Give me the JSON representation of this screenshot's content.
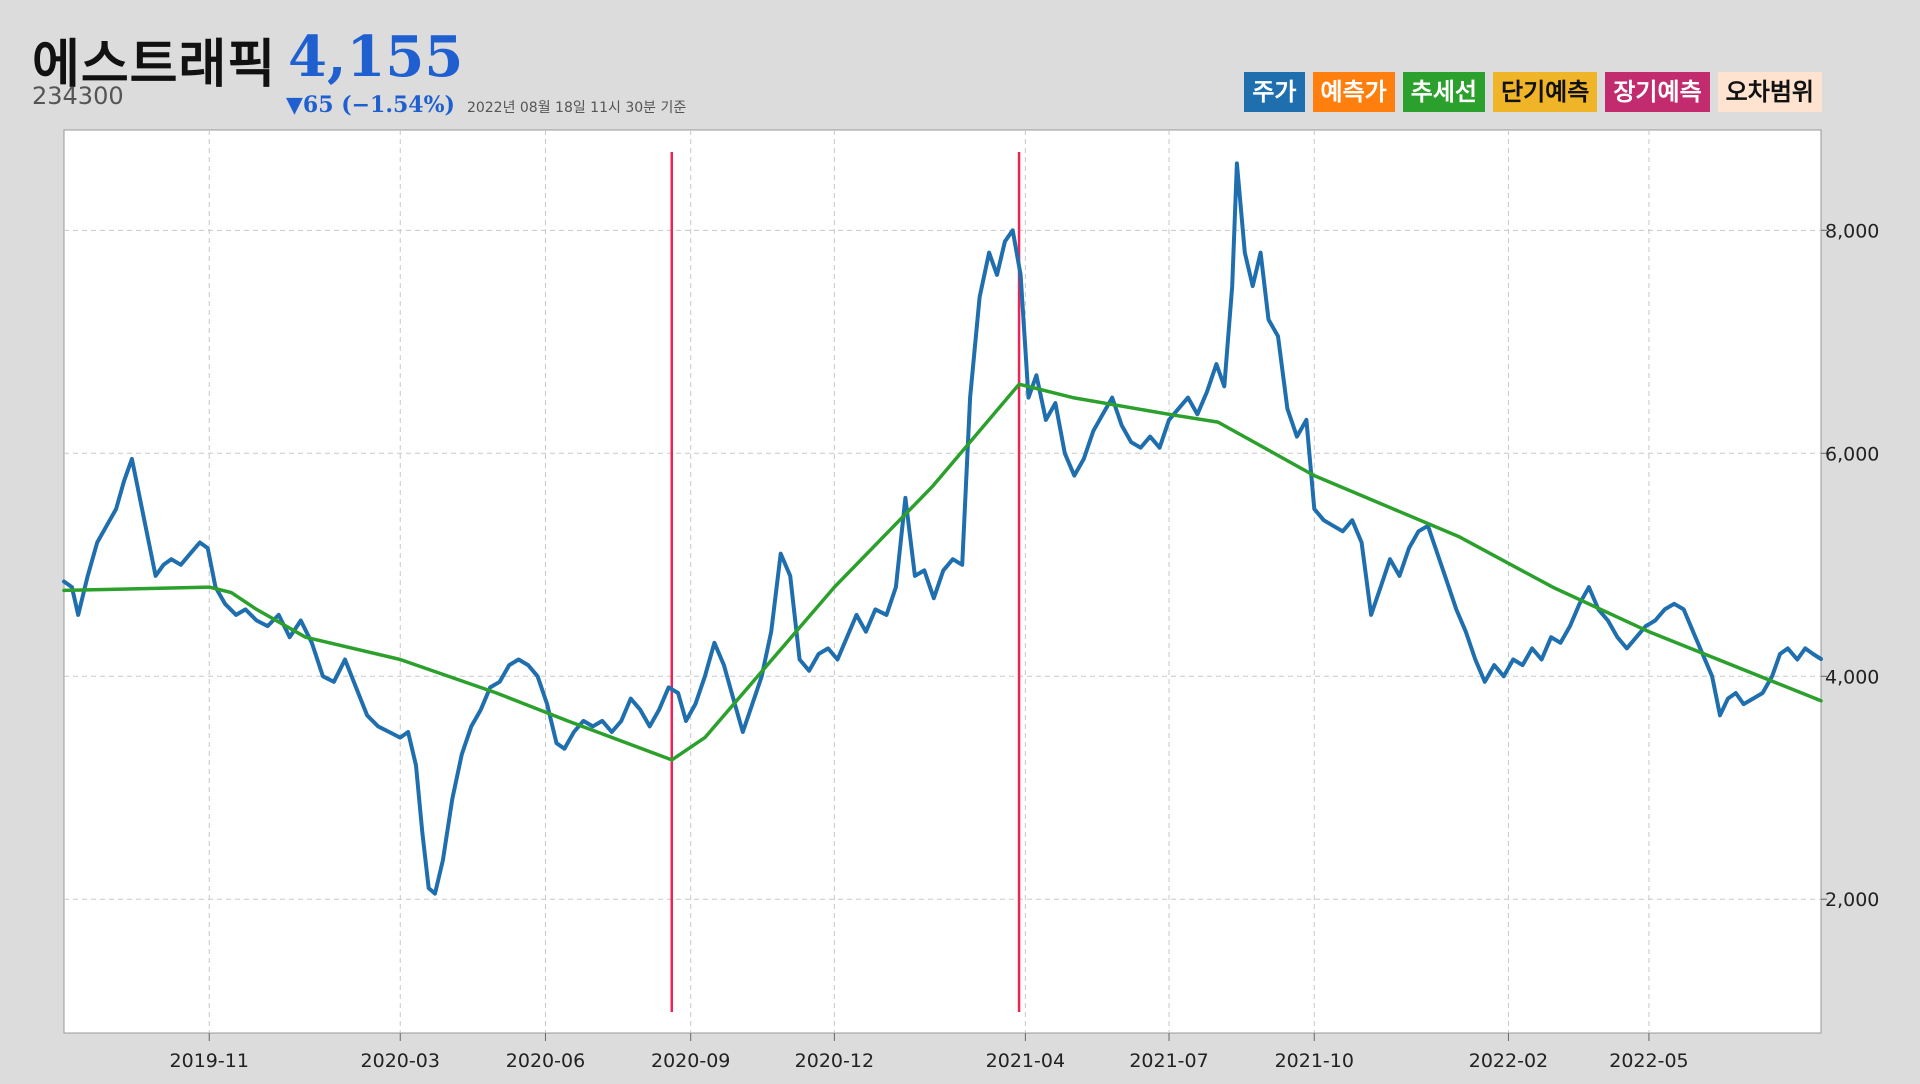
{
  "header": {
    "name": "에스트래픽",
    "code": "234300",
    "price": "4,155",
    "change": "▼65 (−1.54%)",
    "timestamp": "2022년 08월 18일 11시 30분 기준"
  },
  "legend": [
    {
      "label": "주가",
      "bg": "#1f6faf",
      "fg": "#ffffff"
    },
    {
      "label": "예측가",
      "bg": "#ff7f0e",
      "fg": "#ffffff"
    },
    {
      "label": "추세선",
      "bg": "#2ca02c",
      "fg": "#ffffff"
    },
    {
      "label": "단기예측",
      "bg": "#f0b429",
      "fg": "#111111"
    },
    {
      "label": "장기예측",
      "bg": "#c22c6e",
      "fg": "#ffffff"
    },
    {
      "label": "오차범위",
      "bg": "#fde3d0",
      "fg": "#111111"
    }
  ],
  "colors": {
    "price": "#1f6faf",
    "trend": "#2ca02c",
    "marker": "#ee2255",
    "grid": "#c8c8c8"
  },
  "chart_data": {
    "type": "line",
    "xlabels": [
      "2019-11",
      "2020-03",
      "2020-06",
      "2020-09",
      "2020-12",
      "2021-04",
      "2021-07",
      "2021-10",
      "2022-02",
      "2022-05"
    ],
    "xlabel_dates": [
      "2019-11-01",
      "2020-03-01",
      "2020-06-01",
      "2020-09-01",
      "2020-12-01",
      "2021-04-01",
      "2021-07-01",
      "2021-10-01",
      "2022-02-01",
      "2022-05-01"
    ],
    "x_range": [
      "2019-08-01",
      "2022-08-18"
    ],
    "yticks": [
      2000,
      4000,
      6000,
      8000
    ],
    "ytick_labels": [
      "2,000",
      "4,000",
      "6,000",
      "8,000"
    ],
    "ylim": [
      800,
      8900
    ],
    "y_axis_side": "right",
    "grid": true,
    "vertical_markers": [
      "2020-08-20",
      "2021-03-28"
    ],
    "series": [
      {
        "key": "price",
        "points": [
          [
            "2019-08-01",
            4850
          ],
          [
            "2019-08-06",
            4800
          ],
          [
            "2019-08-10",
            4550
          ],
          [
            "2019-08-16",
            4900
          ],
          [
            "2019-08-22",
            5200
          ],
          [
            "2019-08-28",
            5350
          ],
          [
            "2019-09-03",
            5500
          ],
          [
            "2019-09-08",
            5750
          ],
          [
            "2019-09-13",
            5950
          ],
          [
            "2019-09-18",
            5600
          ],
          [
            "2019-09-23",
            5250
          ],
          [
            "2019-09-28",
            4900
          ],
          [
            "2019-10-03",
            5000
          ],
          [
            "2019-10-08",
            5050
          ],
          [
            "2019-10-14",
            5000
          ],
          [
            "2019-10-20",
            5100
          ],
          [
            "2019-10-26",
            5200
          ],
          [
            "2019-10-31",
            5150
          ],
          [
            "2019-11-05",
            4800
          ],
          [
            "2019-11-11",
            4650
          ],
          [
            "2019-11-18",
            4550
          ],
          [
            "2019-11-24",
            4600
          ],
          [
            "2019-12-01",
            4500
          ],
          [
            "2019-12-08",
            4450
          ],
          [
            "2019-12-15",
            4550
          ],
          [
            "2019-12-22",
            4350
          ],
          [
            "2019-12-29",
            4500
          ],
          [
            "2020-01-05",
            4300
          ],
          [
            "2020-01-12",
            4000
          ],
          [
            "2020-01-19",
            3950
          ],
          [
            "2020-01-26",
            4150
          ],
          [
            "2020-02-02",
            3900
          ],
          [
            "2020-02-09",
            3650
          ],
          [
            "2020-02-16",
            3550
          ],
          [
            "2020-02-23",
            3500
          ],
          [
            "2020-03-01",
            3450
          ],
          [
            "2020-03-06",
            3500
          ],
          [
            "2020-03-11",
            3200
          ],
          [
            "2020-03-15",
            2600
          ],
          [
            "2020-03-19",
            2100
          ],
          [
            "2020-03-23",
            2050
          ],
          [
            "2020-03-28",
            2350
          ],
          [
            "2020-04-03",
            2900
          ],
          [
            "2020-04-09",
            3300
          ],
          [
            "2020-04-15",
            3550
          ],
          [
            "2020-04-21",
            3700
          ],
          [
            "2020-04-27",
            3900
          ],
          [
            "2020-05-03",
            3950
          ],
          [
            "2020-05-09",
            4100
          ],
          [
            "2020-05-15",
            4150
          ],
          [
            "2020-05-21",
            4100
          ],
          [
            "2020-05-27",
            4000
          ],
          [
            "2020-06-02",
            3750
          ],
          [
            "2020-06-08",
            3400
          ],
          [
            "2020-06-13",
            3350
          ],
          [
            "2020-06-19",
            3500
          ],
          [
            "2020-06-25",
            3600
          ],
          [
            "2020-07-01",
            3550
          ],
          [
            "2020-07-07",
            3600
          ],
          [
            "2020-07-13",
            3500
          ],
          [
            "2020-07-19",
            3600
          ],
          [
            "2020-07-25",
            3800
          ],
          [
            "2020-07-31",
            3700
          ],
          [
            "2020-08-06",
            3550
          ],
          [
            "2020-08-12",
            3700
          ],
          [
            "2020-08-18",
            3900
          ],
          [
            "2020-08-24",
            3850
          ],
          [
            "2020-08-29",
            3600
          ],
          [
            "2020-09-04",
            3750
          ],
          [
            "2020-09-10",
            4000
          ],
          [
            "2020-09-16",
            4300
          ],
          [
            "2020-09-22",
            4100
          ],
          [
            "2020-09-28",
            3800
          ],
          [
            "2020-10-04",
            3500
          ],
          [
            "2020-10-10",
            3750
          ],
          [
            "2020-10-16",
            4000
          ],
          [
            "2020-10-22",
            4400
          ],
          [
            "2020-10-28",
            5100
          ],
          [
            "2020-11-03",
            4900
          ],
          [
            "2020-11-09",
            4150
          ],
          [
            "2020-11-15",
            4050
          ],
          [
            "2020-11-21",
            4200
          ],
          [
            "2020-11-27",
            4250
          ],
          [
            "2020-12-03",
            4150
          ],
          [
            "2020-12-09",
            4350
          ],
          [
            "2020-12-15",
            4550
          ],
          [
            "2020-12-21",
            4400
          ],
          [
            "2020-12-27",
            4600
          ],
          [
            "2021-01-03",
            4550
          ],
          [
            "2021-01-09",
            4800
          ],
          [
            "2021-01-15",
            5600
          ],
          [
            "2021-01-21",
            4900
          ],
          [
            "2021-01-27",
            4950
          ],
          [
            "2021-02-02",
            4700
          ],
          [
            "2021-02-08",
            4950
          ],
          [
            "2021-02-14",
            5050
          ],
          [
            "2021-02-20",
            5000
          ],
          [
            "2021-02-25",
            6500
          ],
          [
            "2021-03-03",
            7400
          ],
          [
            "2021-03-09",
            7800
          ],
          [
            "2021-03-14",
            7600
          ],
          [
            "2021-03-19",
            7900
          ],
          [
            "2021-03-24",
            8000
          ],
          [
            "2021-03-29",
            7600
          ],
          [
            "2021-04-03",
            6500
          ],
          [
            "2021-04-08",
            6700
          ],
          [
            "2021-04-14",
            6300
          ],
          [
            "2021-04-20",
            6450
          ],
          [
            "2021-04-26",
            6000
          ],
          [
            "2021-05-02",
            5800
          ],
          [
            "2021-05-08",
            5950
          ],
          [
            "2021-05-14",
            6200
          ],
          [
            "2021-05-20",
            6350
          ],
          [
            "2021-05-26",
            6500
          ],
          [
            "2021-06-01",
            6250
          ],
          [
            "2021-06-07",
            6100
          ],
          [
            "2021-06-13",
            6050
          ],
          [
            "2021-06-19",
            6150
          ],
          [
            "2021-06-25",
            6050
          ],
          [
            "2021-07-01",
            6300
          ],
          [
            "2021-07-07",
            6400
          ],
          [
            "2021-07-13",
            6500
          ],
          [
            "2021-07-19",
            6350
          ],
          [
            "2021-07-25",
            6550
          ],
          [
            "2021-07-31",
            6800
          ],
          [
            "2021-08-05",
            6600
          ],
          [
            "2021-08-10",
            7500
          ],
          [
            "2021-08-13",
            8600
          ],
          [
            "2021-08-18",
            7800
          ],
          [
            "2021-08-23",
            7500
          ],
          [
            "2021-08-28",
            7800
          ],
          [
            "2021-09-02",
            7200
          ],
          [
            "2021-09-08",
            7050
          ],
          [
            "2021-09-14",
            6400
          ],
          [
            "2021-09-20",
            6150
          ],
          [
            "2021-09-26",
            6300
          ],
          [
            "2021-10-01",
            5500
          ],
          [
            "2021-10-07",
            5400
          ],
          [
            "2021-10-13",
            5350
          ],
          [
            "2021-10-19",
            5300
          ],
          [
            "2021-10-25",
            5400
          ],
          [
            "2021-10-31",
            5200
          ],
          [
            "2021-11-06",
            4550
          ],
          [
            "2021-11-12",
            4800
          ],
          [
            "2021-11-18",
            5050
          ],
          [
            "2021-11-24",
            4900
          ],
          [
            "2021-11-30",
            5150
          ],
          [
            "2021-12-06",
            5300
          ],
          [
            "2021-12-12",
            5350
          ],
          [
            "2021-12-18",
            5100
          ],
          [
            "2021-12-24",
            4850
          ],
          [
            "2021-12-30",
            4600
          ],
          [
            "2022-01-05",
            4400
          ],
          [
            "2022-01-11",
            4150
          ],
          [
            "2022-01-17",
            3950
          ],
          [
            "2022-01-23",
            4100
          ],
          [
            "2022-01-29",
            4000
          ],
          [
            "2022-02-04",
            4150
          ],
          [
            "2022-02-10",
            4100
          ],
          [
            "2022-02-16",
            4250
          ],
          [
            "2022-02-22",
            4150
          ],
          [
            "2022-02-28",
            4350
          ],
          [
            "2022-03-06",
            4300
          ],
          [
            "2022-03-12",
            4450
          ],
          [
            "2022-03-18",
            4650
          ],
          [
            "2022-03-24",
            4800
          ],
          [
            "2022-03-30",
            4600
          ],
          [
            "2022-04-05",
            4500
          ],
          [
            "2022-04-11",
            4350
          ],
          [
            "2022-04-17",
            4250
          ],
          [
            "2022-04-23",
            4350
          ],
          [
            "2022-04-29",
            4450
          ],
          [
            "2022-05-05",
            4500
          ],
          [
            "2022-05-11",
            4600
          ],
          [
            "2022-05-17",
            4650
          ],
          [
            "2022-05-23",
            4600
          ],
          [
            "2022-05-29",
            4400
          ],
          [
            "2022-06-04",
            4200
          ],
          [
            "2022-06-10",
            4000
          ],
          [
            "2022-06-15",
            3650
          ],
          [
            "2022-06-20",
            3800
          ],
          [
            "2022-06-25",
            3850
          ],
          [
            "2022-06-30",
            3750
          ],
          [
            "2022-07-06",
            3800
          ],
          [
            "2022-07-12",
            3850
          ],
          [
            "2022-07-18",
            4000
          ],
          [
            "2022-07-23",
            4200
          ],
          [
            "2022-07-28",
            4250
          ],
          [
            "2022-08-03",
            4150
          ],
          [
            "2022-08-08",
            4250
          ],
          [
            "2022-08-13",
            4200
          ],
          [
            "2022-08-18",
            4155
          ]
        ]
      },
      {
        "key": "trend",
        "points": [
          [
            "2019-08-01",
            4770
          ],
          [
            "2019-11-01",
            4800
          ],
          [
            "2019-11-15",
            4750
          ],
          [
            "2019-12-01",
            4600
          ],
          [
            "2020-01-01",
            4350
          ],
          [
            "2020-03-01",
            4150
          ],
          [
            "2020-05-01",
            3850
          ],
          [
            "2020-06-15",
            3600
          ],
          [
            "2020-08-20",
            3250
          ],
          [
            "2020-09-10",
            3450
          ],
          [
            "2020-12-01",
            4800
          ],
          [
            "2021-02-01",
            5700
          ],
          [
            "2021-03-28",
            6620
          ],
          [
            "2021-05-01",
            6500
          ],
          [
            "2021-07-01",
            6350
          ],
          [
            "2021-08-01",
            6280
          ],
          [
            "2021-10-01",
            5800
          ],
          [
            "2022-01-01",
            5250
          ],
          [
            "2022-03-01",
            4800
          ],
          [
            "2022-05-01",
            4400
          ],
          [
            "2022-08-18",
            3780
          ]
        ]
      }
    ]
  }
}
